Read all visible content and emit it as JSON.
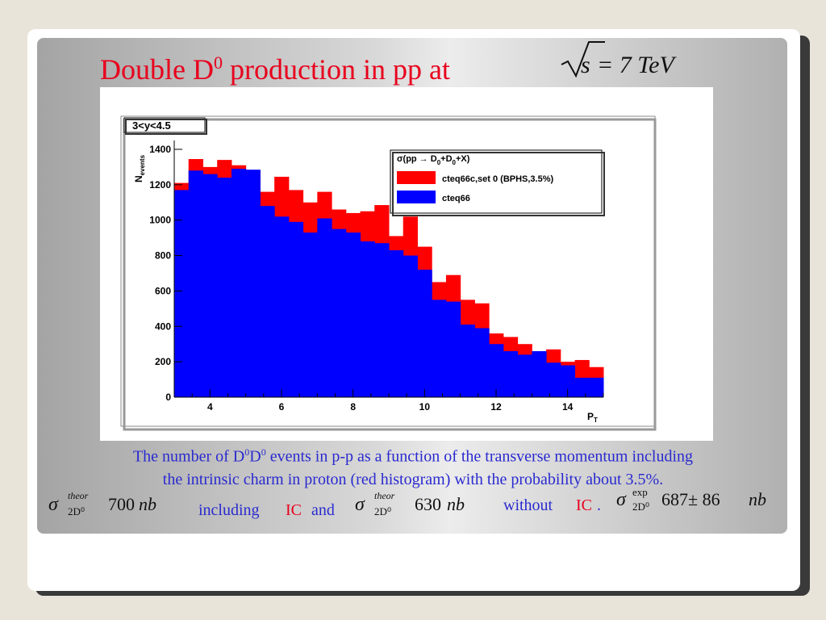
{
  "slide": {
    "title_prefix": "Double D",
    "title_sup": "0",
    "title_suffix": " production in pp at",
    "energy": "= 7 TeV",
    "energy_symbol": "s"
  },
  "chart_data": {
    "type": "histogram",
    "label_box": "3<y<4.5",
    "xlabel": "P",
    "xlabel_sub": "T",
    "ylabel": "N",
    "ylabel_sub": "events",
    "xlim": [
      3,
      15
    ],
    "ylim": [
      0,
      1450
    ],
    "xticks": [
      4,
      6,
      8,
      10,
      12,
      14
    ],
    "yticks": [
      0,
      200,
      400,
      600,
      800,
      1000,
      1200,
      1400
    ],
    "bin_width": 0.4,
    "bin_start": 3.0,
    "legend": {
      "title": "σ(pp → D",
      "title_sub1": "0",
      "title_mid": "+D",
      "title_sub2": "0",
      "title_end": "+X)",
      "placement": "top-right"
    },
    "series": [
      {
        "name": "cteq66c,set 0 (BPHS,3.5%)",
        "color": "#ff0000",
        "values": [
          1210,
          1345,
          1300,
          1340,
          1310,
          1280,
          1160,
          1245,
          1170,
          1100,
          1160,
          1060,
          1040,
          1050,
          1085,
          910,
          1020,
          850,
          650,
          690,
          550,
          530,
          360,
          340,
          300,
          230,
          270,
          200,
          210,
          170
        ]
      },
      {
        "name": "cteq66",
        "color": "#0000ff",
        "values": [
          1170,
          1280,
          1260,
          1240,
          1290,
          1285,
          1080,
          1020,
          990,
          930,
          1010,
          950,
          930,
          880,
          870,
          830,
          800,
          720,
          550,
          540,
          410,
          390,
          300,
          260,
          240,
          260,
          195,
          180,
          110,
          110
        ]
      }
    ]
  },
  "caption": {
    "line1_a": "The number of D",
    "line1_sup1": "0",
    "line1_b": "D",
    "line1_sup2": "0",
    "line1_c": " events in p-p as a function of the transverse momentum including",
    "line2": "the intrinsic charm in proton (red histogram) with  the probability about 3.5%."
  },
  "formulas": {
    "f1_sup": "theor",
    "f1_sub": "2D⁰",
    "f1_value": "700",
    "f1_unit": "nb",
    "including": "including",
    "ic1": "IC",
    "and": "and",
    "f2_sup": "theor",
    "f2_sub": "2D⁰",
    "f2_value": "630",
    "f2_unit": "nb",
    "without": "without",
    "ic2": "IC",
    "dot": ".",
    "f3_sup": "exp",
    "f3_sub": "2D⁰",
    "f3_value": "687± 86",
    "f3_unit": "nb",
    "sigma": "σ"
  }
}
